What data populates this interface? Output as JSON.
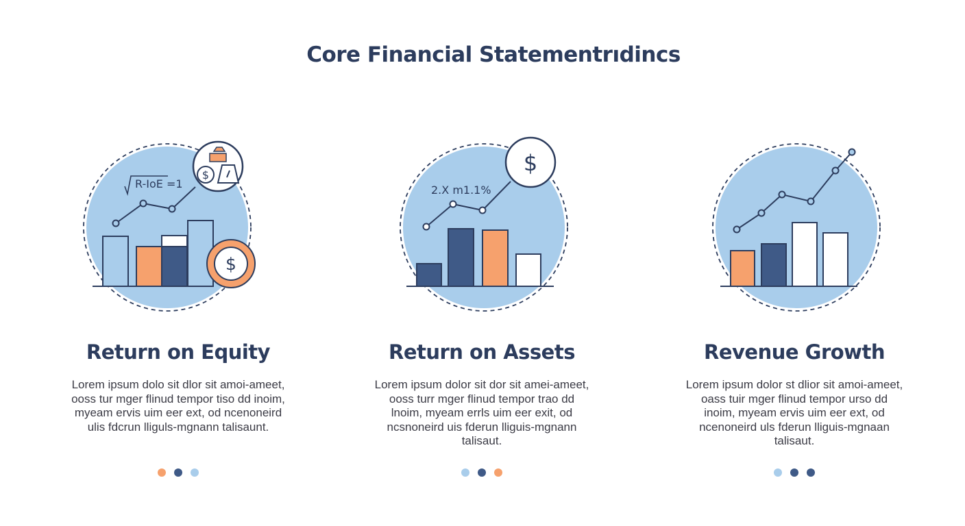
{
  "title": "Core Financial Statementrıdincs",
  "colors": {
    "navy": "#3f5a87",
    "orange": "#f6a16d",
    "light_blue": "#a9cdeb",
    "outline": "#2c3c5d",
    "white": "#ffffff"
  },
  "cards": [
    {
      "heading": "Return on Equity",
      "formula": "R-IoE =1",
      "icons": [
        "money-bags-icon",
        "dollar-coin-icon"
      ],
      "body": "Lorem ipsum dolo sit dlor sit amoi-ameet, ooss tur mger flinud tempor tiso dd inoim, myeam ervis uim eer ext, od ncenoneird ulis fdcrun lliguls-mgnann talisaunt.",
      "dots": [
        "orange",
        "navy",
        "light_blue"
      ]
    },
    {
      "heading": "Return on Assets",
      "formula": "2.X m1.1%",
      "icons": [
        "dollar-coin-icon"
      ],
      "body": "Lorem ipsum dolor sit dor sit amei-ameet, ooss turr mger flinud tempor trao dd lnoim, myeam errls uim eer exit, od ncsnoneird uis fderun lliguis-mgnann talisaut.",
      "dots": [
        "light_blue",
        "navy",
        "orange"
      ]
    },
    {
      "heading": "Revenue Growth",
      "formula": "",
      "icons": [],
      "body": "Lorem ipsum dolor st dlior sit amoi-ameet, oass tuir mger flinud tempor urso dd inoim, myeam ervis uim eer ext, od ncenoneird uls fderun lliguis-mgnaan talisaut.",
      "dots": [
        "light_blue",
        "navy",
        "navy"
      ]
    }
  ]
}
